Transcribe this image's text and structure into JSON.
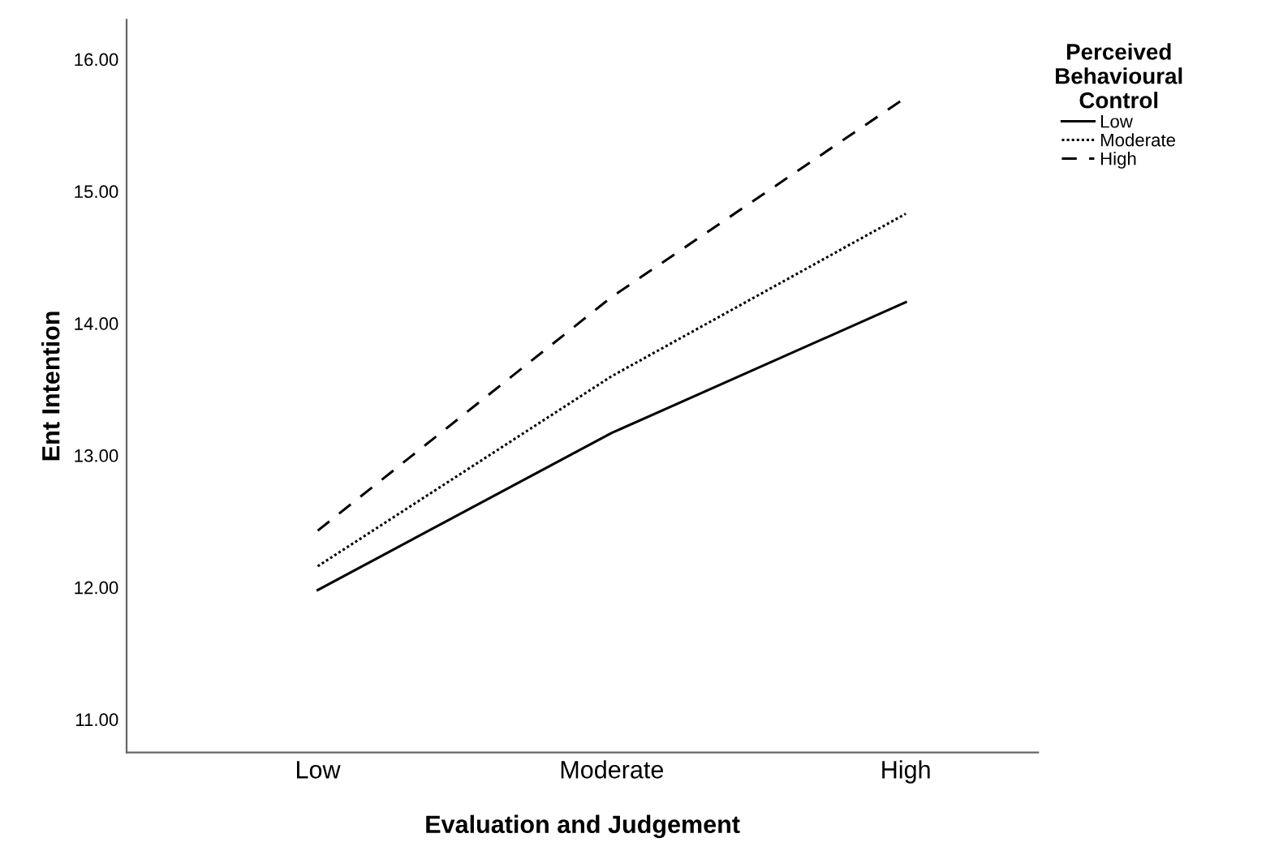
{
  "chart_data": {
    "type": "line",
    "xlabel": "Evaluation and Judgement",
    "ylabel": "Ent Intention",
    "legend_title": "Perceived\nBehavioural\nControl",
    "categories": [
      "Low",
      "Moderate",
      "High"
    ],
    "series": [
      {
        "name": "Low",
        "color": "#000000",
        "line_style": "solid",
        "values": [
          11.98,
          13.17,
          14.16
        ]
      },
      {
        "name": "Moderate",
        "color": "#000000",
        "line_style": "dotted",
        "values": [
          12.16,
          13.6,
          14.83
        ]
      },
      {
        "name": "High",
        "color": "#000000",
        "line_style": "dashed",
        "values": [
          12.43,
          14.2,
          15.71
        ]
      }
    ],
    "ylim": [
      10.75,
      16.3
    ],
    "yticks": [
      {
        "value": 11,
        "label": "11.00"
      },
      {
        "value": 12,
        "label": "12.00"
      },
      {
        "value": 13,
        "label": "13.00"
      },
      {
        "value": 14,
        "label": "14.00"
      },
      {
        "value": 15,
        "label": "15.00"
      },
      {
        "value": 16,
        "label": "16.00"
      }
    ],
    "grid": false,
    "legend": "right",
    "marker": "none"
  }
}
